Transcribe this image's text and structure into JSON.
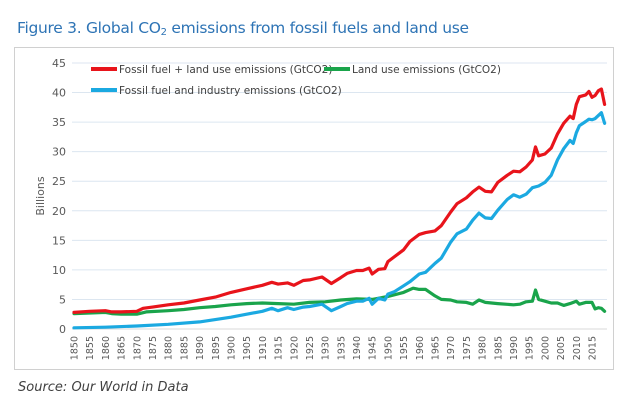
{
  "figure": {
    "title_prefix": "Figure 3. Global CO",
    "title_sub": "2",
    "title_suffix": " emissions from fossil fuels and land use",
    "source": "Source: Our World in Data"
  },
  "chart_data": {
    "type": "line",
    "title": "Figure 3. Global CO2 emissions from fossil fuels and land use",
    "xlabel": "",
    "ylabel": "Billions",
    "ylim": [
      0,
      45
    ],
    "xlim": [
      1850,
      2019
    ],
    "yticks": [
      0,
      5,
      10,
      15,
      20,
      25,
      30,
      35,
      40,
      45
    ],
    "xticks": [
      1850,
      1855,
      1860,
      1865,
      1870,
      1875,
      1880,
      1885,
      1890,
      1895,
      1900,
      1905,
      1910,
      1915,
      1920,
      1925,
      1930,
      1935,
      1940,
      1945,
      1950,
      1955,
      1960,
      1965,
      1970,
      1975,
      1980,
      1985,
      1990,
      1995,
      2000,
      2005,
      2010,
      2015
    ],
    "grid": true,
    "legend_position": "top-left",
    "series": [
      {
        "name": "Fossil fuel + land use emissions (GtCO2)",
        "color": "#e8141b",
        "points": [
          [
            1850,
            2.8
          ],
          [
            1855,
            3.0
          ],
          [
            1860,
            3.1
          ],
          [
            1862,
            2.9
          ],
          [
            1865,
            2.9
          ],
          [
            1870,
            3.0
          ],
          [
            1872,
            3.5
          ],
          [
            1875,
            3.7
          ],
          [
            1880,
            4.1
          ],
          [
            1885,
            4.4
          ],
          [
            1890,
            4.9
          ],
          [
            1895,
            5.4
          ],
          [
            1900,
            6.2
          ],
          [
            1905,
            6.8
          ],
          [
            1910,
            7.4
          ],
          [
            1913,
            7.9
          ],
          [
            1915,
            7.6
          ],
          [
            1918,
            7.8
          ],
          [
            1920,
            7.4
          ],
          [
            1923,
            8.2
          ],
          [
            1925,
            8.3
          ],
          [
            1929,
            8.8
          ],
          [
            1932,
            7.7
          ],
          [
            1935,
            8.7
          ],
          [
            1937,
            9.4
          ],
          [
            1940,
            9.9
          ],
          [
            1942,
            9.9
          ],
          [
            1944,
            10.3
          ],
          [
            1945,
            9.3
          ],
          [
            1947,
            10.1
          ],
          [
            1949,
            10.2
          ],
          [
            1950,
            11.4
          ],
          [
            1952,
            12.2
          ],
          [
            1955,
            13.4
          ],
          [
            1957,
            14.8
          ],
          [
            1960,
            16.0
          ],
          [
            1962,
            16.3
          ],
          [
            1965,
            16.6
          ],
          [
            1967,
            17.5
          ],
          [
            1970,
            19.8
          ],
          [
            1972,
            21.2
          ],
          [
            1975,
            22.2
          ],
          [
            1977,
            23.2
          ],
          [
            1979,
            24.0
          ],
          [
            1981,
            23.3
          ],
          [
            1983,
            23.2
          ],
          [
            1985,
            24.8
          ],
          [
            1988,
            26.0
          ],
          [
            1990,
            26.7
          ],
          [
            1992,
            26.6
          ],
          [
            1994,
            27.4
          ],
          [
            1996,
            28.6
          ],
          [
            1997,
            30.8
          ],
          [
            1998,
            29.3
          ],
          [
            2000,
            29.6
          ],
          [
            2002,
            30.6
          ],
          [
            2004,
            33.0
          ],
          [
            2006,
            34.8
          ],
          [
            2008,
            36.0
          ],
          [
            2009,
            35.6
          ],
          [
            2010,
            38.0
          ],
          [
            2011,
            39.3
          ],
          [
            2013,
            39.6
          ],
          [
            2014,
            40.2
          ],
          [
            2015,
            39.2
          ],
          [
            2016,
            39.5
          ],
          [
            2017,
            40.3
          ],
          [
            2018,
            40.6
          ],
          [
            2019,
            38.0
          ]
        ]
      },
      {
        "name": "Land use emissions (GtCO2)",
        "color": "#1aa44b",
        "points": [
          [
            1850,
            2.6
          ],
          [
            1855,
            2.7
          ],
          [
            1860,
            2.8
          ],
          [
            1862,
            2.6
          ],
          [
            1865,
            2.5
          ],
          [
            1870,
            2.5
          ],
          [
            1873,
            2.9
          ],
          [
            1880,
            3.1
          ],
          [
            1885,
            3.3
          ],
          [
            1890,
            3.6
          ],
          [
            1895,
            3.8
          ],
          [
            1900,
            4.1
          ],
          [
            1905,
            4.3
          ],
          [
            1910,
            4.4
          ],
          [
            1915,
            4.3
          ],
          [
            1920,
            4.2
          ],
          [
            1925,
            4.5
          ],
          [
            1930,
            4.6
          ],
          [
            1935,
            4.9
          ],
          [
            1940,
            5.1
          ],
          [
            1945,
            5.0
          ],
          [
            1950,
            5.5
          ],
          [
            1955,
            6.2
          ],
          [
            1958,
            6.9
          ],
          [
            1960,
            6.7
          ],
          [
            1962,
            6.7
          ],
          [
            1965,
            5.6
          ],
          [
            1967,
            5.0
          ],
          [
            1970,
            4.9
          ],
          [
            1972,
            4.6
          ],
          [
            1975,
            4.5
          ],
          [
            1977,
            4.2
          ],
          [
            1979,
            4.9
          ],
          [
            1981,
            4.5
          ],
          [
            1985,
            4.3
          ],
          [
            1990,
            4.1
          ],
          [
            1992,
            4.2
          ],
          [
            1994,
            4.6
          ],
          [
            1996,
            4.7
          ],
          [
            1997,
            6.6
          ],
          [
            1998,
            5.0
          ],
          [
            2000,
            4.7
          ],
          [
            2002,
            4.4
          ],
          [
            2004,
            4.4
          ],
          [
            2006,
            4.0
          ],
          [
            2008,
            4.3
          ],
          [
            2010,
            4.7
          ],
          [
            2011,
            4.2
          ],
          [
            2013,
            4.5
          ],
          [
            2015,
            4.5
          ],
          [
            2016,
            3.4
          ],
          [
            2017,
            3.6
          ],
          [
            2018,
            3.5
          ],
          [
            2019,
            3.0
          ]
        ]
      },
      {
        "name": "Fossil fuel and industry emissions (GtCO2)",
        "color": "#1ba9e1",
        "points": [
          [
            1850,
            0.2
          ],
          [
            1860,
            0.3
          ],
          [
            1870,
            0.5
          ],
          [
            1880,
            0.8
          ],
          [
            1890,
            1.2
          ],
          [
            1900,
            2.0
          ],
          [
            1905,
            2.5
          ],
          [
            1910,
            3.0
          ],
          [
            1913,
            3.5
          ],
          [
            1915,
            3.1
          ],
          [
            1918,
            3.6
          ],
          [
            1920,
            3.3
          ],
          [
            1923,
            3.7
          ],
          [
            1925,
            3.8
          ],
          [
            1929,
            4.2
          ],
          [
            1932,
            3.1
          ],
          [
            1935,
            3.8
          ],
          [
            1937,
            4.3
          ],
          [
            1940,
            4.7
          ],
          [
            1942,
            4.7
          ],
          [
            1944,
            5.2
          ],
          [
            1945,
            4.2
          ],
          [
            1947,
            5.2
          ],
          [
            1949,
            4.9
          ],
          [
            1950,
            5.9
          ],
          [
            1952,
            6.3
          ],
          [
            1955,
            7.3
          ],
          [
            1957,
            8.0
          ],
          [
            1960,
            9.3
          ],
          [
            1962,
            9.6
          ],
          [
            1965,
            11.1
          ],
          [
            1967,
            12.0
          ],
          [
            1970,
            14.7
          ],
          [
            1972,
            16.1
          ],
          [
            1975,
            16.9
          ],
          [
            1977,
            18.4
          ],
          [
            1979,
            19.6
          ],
          [
            1981,
            18.8
          ],
          [
            1983,
            18.7
          ],
          [
            1985,
            20.1
          ],
          [
            1988,
            21.9
          ],
          [
            1990,
            22.7
          ],
          [
            1992,
            22.3
          ],
          [
            1994,
            22.8
          ],
          [
            1996,
            23.9
          ],
          [
            1998,
            24.2
          ],
          [
            2000,
            24.8
          ],
          [
            2002,
            26.0
          ],
          [
            2004,
            28.6
          ],
          [
            2006,
            30.5
          ],
          [
            2008,
            31.9
          ],
          [
            2009,
            31.4
          ],
          [
            2010,
            33.2
          ],
          [
            2011,
            34.4
          ],
          [
            2013,
            35.1
          ],
          [
            2014,
            35.5
          ],
          [
            2015,
            35.4
          ],
          [
            2016,
            35.6
          ],
          [
            2017,
            36.1
          ],
          [
            2018,
            36.6
          ],
          [
            2019,
            34.8
          ]
        ]
      }
    ]
  }
}
